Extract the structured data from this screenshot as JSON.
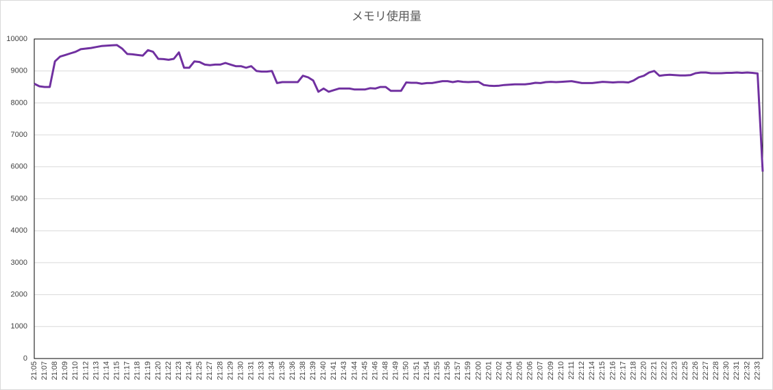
{
  "chart_data": {
    "type": "line",
    "title": "メモリ使用量",
    "categories": [
      "21:05",
      null,
      "21:07",
      null,
      "21:08",
      null,
      "21:09",
      null,
      "21:10",
      null,
      "21:12",
      null,
      "21:13",
      null,
      "21:14",
      null,
      "21:15",
      null,
      "21:17",
      null,
      "21:18",
      null,
      "21:19",
      null,
      "21:20",
      null,
      "21:22",
      null,
      "21:23",
      null,
      "21:24",
      null,
      "21:25",
      null,
      "21:27",
      null,
      "21:28",
      null,
      "21:29",
      null,
      "21:30",
      null,
      "21:31",
      null,
      "21:33",
      null,
      "21:34",
      null,
      "21:35",
      null,
      "21:36",
      null,
      "21:38",
      null,
      "21:39",
      null,
      "21:40",
      null,
      "21:41",
      null,
      "21:43",
      null,
      "21:44",
      null,
      "21:45",
      null,
      "21:46",
      null,
      "21:48",
      null,
      "21:49",
      null,
      "21:50",
      null,
      "21:51",
      null,
      "21:54",
      null,
      "21:55",
      null,
      "21:56",
      null,
      "21:57",
      null,
      "21:59",
      null,
      "22:00",
      null,
      "22:01",
      null,
      "22:02",
      null,
      "22:04",
      null,
      "22:05",
      null,
      "22:06",
      null,
      "22:07",
      null,
      "22:09",
      null,
      "22:10",
      null,
      "22:11",
      null,
      "22:12",
      null,
      "22:14",
      null,
      "22:15",
      null,
      "22:16",
      null,
      "22:17",
      null,
      "22:18",
      null,
      "22:20",
      null,
      "22:21",
      null,
      "22:22",
      null,
      "22:23",
      null,
      "22:25",
      null,
      "22:26",
      null,
      "22:27",
      null,
      "22:28",
      null,
      "22:30",
      null,
      "22:31",
      null,
      "22:32",
      null,
      "22:33",
      null
    ],
    "values": [
      8600,
      8520,
      8500,
      8500,
      9300,
      9450,
      9500,
      9550,
      9600,
      9680,
      9700,
      9720,
      9750,
      9780,
      9790,
      9800,
      9810,
      9700,
      9530,
      9520,
      9500,
      9480,
      9650,
      9600,
      9380,
      9370,
      9350,
      9380,
      9580,
      9100,
      9100,
      9300,
      9280,
      9200,
      9180,
      9200,
      9200,
      9250,
      9200,
      9150,
      9150,
      9100,
      9150,
      9000,
      8980,
      8980,
      9000,
      8620,
      8650,
      8650,
      8650,
      8650,
      8850,
      8800,
      8700,
      8350,
      8450,
      8350,
      8400,
      8450,
      8450,
      8450,
      8420,
      8420,
      8420,
      8460,
      8450,
      8500,
      8500,
      8380,
      8380,
      8380,
      8640,
      8630,
      8630,
      8600,
      8620,
      8620,
      8650,
      8680,
      8680,
      8650,
      8680,
      8660,
      8650,
      8660,
      8660,
      8560,
      8540,
      8530,
      8540,
      8560,
      8570,
      8580,
      8580,
      8580,
      8600,
      8630,
      8620,
      8650,
      8660,
      8650,
      8660,
      8670,
      8680,
      8650,
      8620,
      8620,
      8620,
      8640,
      8660,
      8650,
      8640,
      8650,
      8650,
      8640,
      8700,
      8800,
      8850,
      8950,
      9000,
      8850,
      8870,
      8880,
      8870,
      8860,
      8860,
      8870,
      8930,
      8950,
      8950,
      8930,
      8930,
      8930,
      8940,
      8940,
      8950,
      8940,
      8950,
      8940,
      8920,
      5850
    ],
    "color": "#7030a0",
    "ylim": [
      0,
      10000
    ],
    "yticks": [
      0,
      1000,
      2000,
      3000,
      4000,
      5000,
      6000,
      7000,
      8000,
      9000,
      10000
    ],
    "grid": true
  }
}
